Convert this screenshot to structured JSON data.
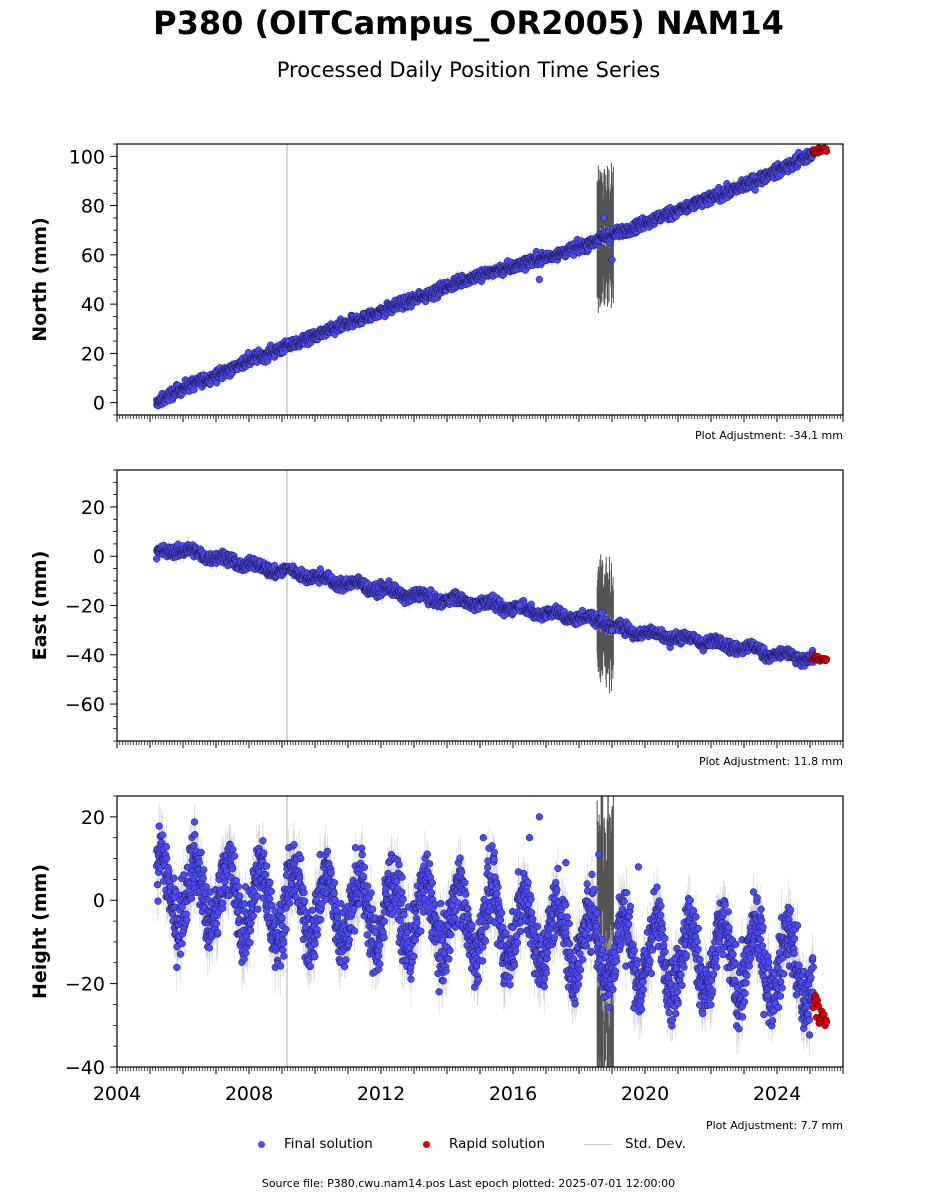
{
  "title": "P380 (OITCampus_OR2005) NAM14",
  "subtitle": "Processed Daily Position Time Series",
  "legend": {
    "final": "Final solution",
    "rapid": "Rapid solution",
    "stddev": "Std. Dev."
  },
  "footer": "Source file: P380.cwu.nam14.pos  Last epoch plotted: 2025-07-01 12:00:00",
  "colors": {
    "final": "#4b4bf5",
    "rapid": "#e00000",
    "stddev": "#c8c8c8",
    "stddev_dark": "#555555"
  },
  "chart_data": [
    {
      "type": "scatter",
      "ylabel": "North (mm)",
      "xlim": [
        2004,
        2026
      ],
      "ylim": [
        -5,
        105
      ],
      "yticks": [
        0,
        20,
        40,
        60,
        80,
        100
      ],
      "adjustment": "Plot Adjustment: -34.1 mm",
      "series": [
        {
          "name": "Final solution",
          "kind": "final",
          "x": [
            2005.2,
            2006,
            2007,
            2008,
            2009,
            2010,
            2011,
            2012,
            2013,
            2014,
            2015,
            2016,
            2016.6,
            2017,
            2018,
            2018.7,
            2019,
            2020,
            2021,
            2022,
            2023,
            2024,
            2025.1
          ],
          "y": [
            0,
            6,
            11,
            17,
            22,
            27,
            32,
            37,
            42,
            47,
            52,
            55,
            58,
            59,
            63,
            67,
            68,
            73,
            78,
            83,
            88,
            94,
            101
          ]
        },
        {
          "name": "Rapid solution",
          "kind": "rapid",
          "x": [
            2025.1,
            2025.5
          ],
          "y": [
            102,
            103
          ]
        }
      ],
      "noise": 1.2
    },
    {
      "type": "scatter",
      "ylabel": "East (mm)",
      "xlim": [
        2004,
        2026
      ],
      "ylim": [
        -75,
        35
      ],
      "yticks": [
        -60,
        -40,
        -20,
        0,
        20
      ],
      "adjustment": "Plot Adjustment: 11.8 mm",
      "series": [
        {
          "name": "Final solution",
          "kind": "final",
          "x": [
            2005.2,
            2005.7,
            2006.5,
            2007.5,
            2008.5,
            2009.5,
            2010.5,
            2011.5,
            2012.5,
            2013.5,
            2014.5,
            2015.5,
            2016.5,
            2017.5,
            2018.5,
            2018.7,
            2019,
            2020,
            2021,
            2022,
            2023,
            2024,
            2025.1
          ],
          "y": [
            0,
            3,
            1,
            -2,
            -5,
            -7,
            -10,
            -12,
            -15,
            -17,
            -18,
            -20,
            -22,
            -24,
            -26,
            -25,
            -29,
            -31,
            -33,
            -35,
            -37,
            -40,
            -42
          ]
        },
        {
          "name": "Rapid solution",
          "kind": "rapid",
          "x": [
            2025.1,
            2025.5
          ],
          "y": [
            -41,
            -42
          ]
        }
      ],
      "noise": 1.2
    },
    {
      "type": "scatter",
      "ylabel": "Height (mm)",
      "xlim": [
        2004,
        2026
      ],
      "ylim": [
        -40,
        25
      ],
      "yticks": [
        -40,
        -20,
        0,
        20
      ],
      "xticks": [
        2004,
        2008,
        2012,
        2016,
        2020,
        2024
      ],
      "adjustment": "Plot Adjustment: 7.7 mm",
      "series": [
        {
          "name": "Final solution",
          "kind": "final",
          "x": [
            2005.2,
            2008,
            2012,
            2016,
            2018.7,
            2020,
            2022,
            2024,
            2025.1
          ],
          "y": [
            3,
            0,
            -3,
            -6,
            -11,
            -13,
            -14,
            -15,
            -17
          ]
        },
        {
          "name": "Rapid solution",
          "kind": "rapid",
          "x": [
            2025.1,
            2025.5
          ],
          "y": [
            -22,
            -31
          ]
        }
      ],
      "seasonal_amplitude": 8,
      "noise": 4
    }
  ]
}
